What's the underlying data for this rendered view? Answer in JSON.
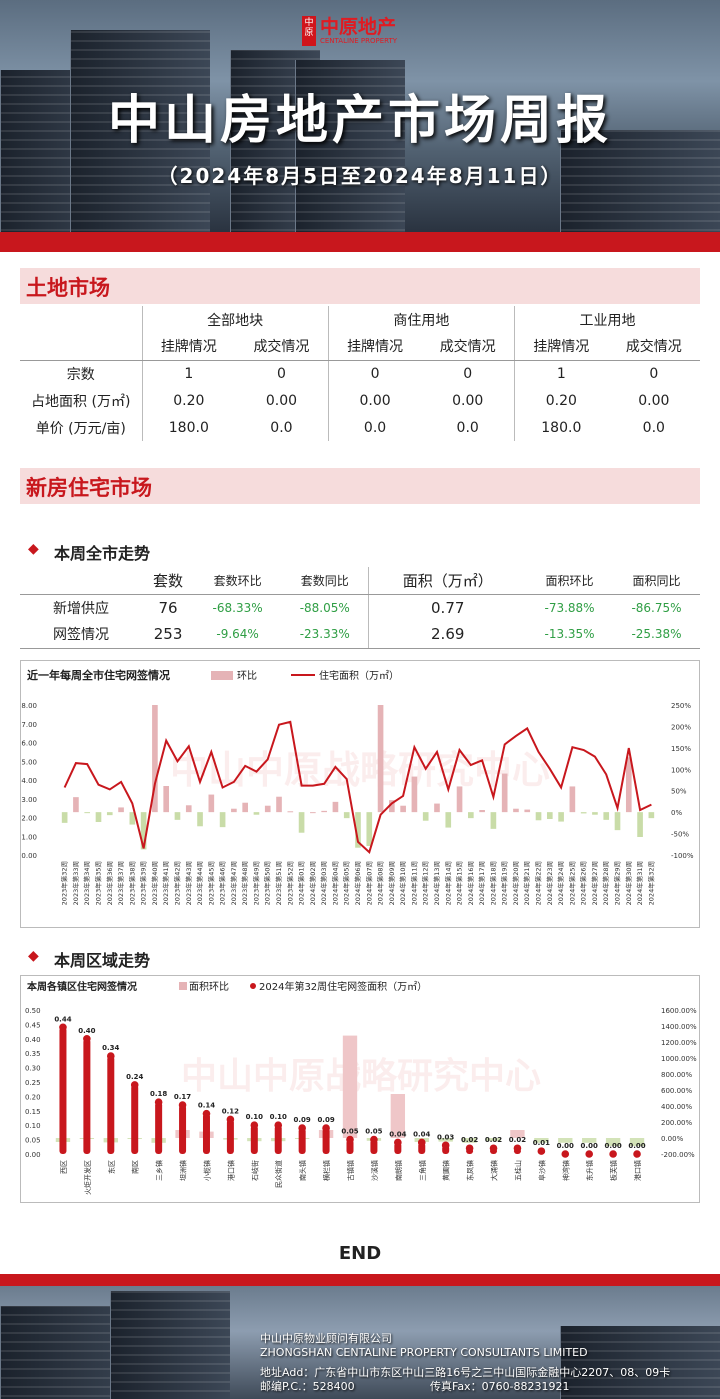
{
  "header": {
    "logo_mark": "中原",
    "logo_cn": "中原地产",
    "logo_en": "CENTALINE PROPERTY",
    "title": "中山房地产市场周报",
    "subtitle": "（2024年8月5日至2024年8月11日）"
  },
  "land": {
    "section_title": "土地市场",
    "groups": [
      "全部地块",
      "商住用地",
      "工业用地"
    ],
    "subheads": [
      "挂牌情况",
      "成交情况",
      "挂牌情况",
      "成交情况",
      "挂牌情况",
      "成交情况"
    ],
    "rows": [
      {
        "label": "宗数",
        "values": [
          "1",
          "0",
          "0",
          "0",
          "1",
          "0"
        ]
      },
      {
        "label": "占地面积 (万㎡)",
        "values": [
          "0.20",
          "0.00",
          "0.00",
          "0.00",
          "0.20",
          "0.00"
        ]
      },
      {
        "label": "单价 (万元/亩)",
        "values": [
          "180.0",
          "0.0",
          "0.0",
          "0.0",
          "180.0",
          "0.0"
        ]
      }
    ]
  },
  "newhome": {
    "section_title": "新房住宅市场",
    "sub1": "本周全市走势",
    "sub2": "本周区域走势",
    "headers": [
      "套数",
      "套数环比",
      "套数同比",
      "面积（万㎡）",
      "面积环比",
      "面积同比"
    ],
    "rows": [
      {
        "label": "新增供应",
        "values": [
          "76",
          "-68.33%",
          "-88.05%",
          "0.77",
          "-73.88%",
          "-86.75%"
        ]
      },
      {
        "label": "网签情况",
        "values": [
          "253",
          "-9.64%",
          "-23.33%",
          "2.69",
          "-13.35%",
          "-25.38%"
        ]
      }
    ]
  },
  "chart_data": [
    {
      "type": "bar+line",
      "title": "近一年每周全市住宅网签情况",
      "watermark": "中山中原战略研究中心",
      "legend": [
        "环比",
        "住宅面积（万㎡）"
      ],
      "categories": [
        "2023年第32周",
        "2023年第33周",
        "2023年第34周",
        "2023年第35周",
        "2023年第36周",
        "2023年第37周",
        "2023年第38周",
        "2023年第39周",
        "2023年第40周",
        "2023年第41周",
        "2023年第42周",
        "2023年第43周",
        "2023年第44周",
        "2023年第45周",
        "2023年第46周",
        "2023年第47周",
        "2023年第48周",
        "2023年第49周",
        "2023年第50周",
        "2023年第51周",
        "2023年第52周",
        "2024年第01周",
        "2024年第02周",
        "2024年第03周",
        "2024年第04周",
        "2024年第05周",
        "2024年第06周",
        "2024年第07周",
        "2024年第08周",
        "2024年第09周",
        "2024年第10周",
        "2024年第11周",
        "2024年第12周",
        "2024年第13周",
        "2024年第14周",
        "2024年第15周",
        "2024年第16周",
        "2024年第17周",
        "2024年第18周",
        "2024年第19周",
        "2024年第20周",
        "2024年第21周",
        "2024年第22周",
        "2024年第23周",
        "2024年第24周",
        "2024年第25周",
        "2024年第26周",
        "2024年第27周",
        "2024年第28周",
        "2024年第29周",
        "2024年第30周",
        "2024年第31周",
        "2024年第32周"
      ],
      "area": [
        3.6,
        4.9,
        4.85,
        3.75,
        3.5,
        3.9,
        2.75,
        0.35,
        3.8,
        6.1,
        5.0,
        5.8,
        3.9,
        5.5,
        3.6,
        3.9,
        4.75,
        4.45,
        5.1,
        6.95,
        7.1,
        3.7,
        3.7,
        3.8,
        4.7,
        4.05,
        0.7,
        0.15,
        2.15,
        2.75,
        3.15,
        5.75,
        4.6,
        5.5,
        3.5,
        5.6,
        4.8,
        5.05,
        3.1,
        5.9,
        6.35,
        6.75,
        5.5,
        4.6,
        3.6,
        5.75,
        5.6,
        5.25,
        4.3,
        2.5,
        5.7,
        2.4,
        2.69
      ],
      "mom_pct": [
        -25,
        35,
        -1,
        -23,
        -7,
        11,
        -29,
        -87,
        990,
        61,
        -18,
        16,
        -33,
        41,
        -35,
        8,
        22,
        -6,
        15,
        36,
        2,
        -48,
        0,
        3,
        24,
        -14,
        -83,
        -79,
        1333,
        28,
        15,
        83,
        -20,
        20,
        -36,
        60,
        -14,
        5,
        -39,
        90,
        8,
        6,
        -19,
        -16,
        -22,
        60,
        -3,
        -6,
        -18,
        -42,
        128,
        -58,
        -14
      ],
      "yleft": [
        0,
        8
      ],
      "yright": [
        -100,
        250
      ]
    },
    {
      "type": "bar+scatter",
      "title": "本周各镇区住宅网签情况",
      "watermark": "中山中原战略研究中心",
      "legend": [
        "面积环比",
        "2024年第32周住宅网签面积（万㎡）"
      ],
      "categories": [
        "西区",
        "火炬开发区",
        "东区",
        "南区",
        "三乡镇",
        "坦洲镇",
        "小榄镇",
        "港口镇",
        "石岐街",
        "民众街道",
        "南头镇",
        "横栏镇",
        "古镇镇",
        "沙溪镇",
        "南朗镇",
        "三角镇",
        "黄圃镇",
        "东凤镇",
        "大涌镇",
        "五桂山",
        "阜沙镇",
        "神湾镇",
        "东升镇",
        "板芙镇",
        "港口镇"
      ],
      "area": [
        0.44,
        0.4,
        0.34,
        0.24,
        0.18,
        0.17,
        0.14,
        0.12,
        0.1,
        0.1,
        0.09,
        0.09,
        0.05,
        0.05,
        0.04,
        0.04,
        0.03,
        0.02,
        0.02,
        0.02,
        0.01,
        0.0,
        0.0,
        0.0,
        0.0
      ],
      "area_labels": [
        "0.44",
        "0.40",
        "0.34",
        "0.24",
        "0.18",
        "0.17",
        "0.14",
        "0.12",
        "0.10",
        "0.10",
        "0.09",
        "0.09",
        "0.05",
        "0.05",
        "0.04",
        "0.04",
        "0.03",
        "0.02",
        "0.02",
        "0.02",
        "0.01",
        "0.00",
        "0.00",
        "0.00",
        "0.00"
      ],
      "mom_pct": [
        -50,
        -10,
        -55,
        -5,
        -60,
        100,
        80,
        -20,
        -40,
        -40,
        -10,
        100,
        1280,
        -35,
        550,
        -50,
        -45,
        -60,
        -40,
        100,
        -60,
        -60,
        -60,
        -100,
        -100
      ],
      "yleft": [
        0,
        0.5
      ],
      "yright": [
        -200,
        1600
      ]
    }
  ],
  "end_text": "END",
  "footer": {
    "company_cn": "中山中原物业顾问有限公司",
    "company_en": "ZHONGSHAN CENTALINE PROPERTY CONSULTANTS LIMITED",
    "address": "地址Add：广东省中山市东区中山三路16号之三中山国际金融中心2207、08、09卡",
    "postcode": "邮编P.C.：528400",
    "fax": "传真Fax：0760-88231921"
  }
}
